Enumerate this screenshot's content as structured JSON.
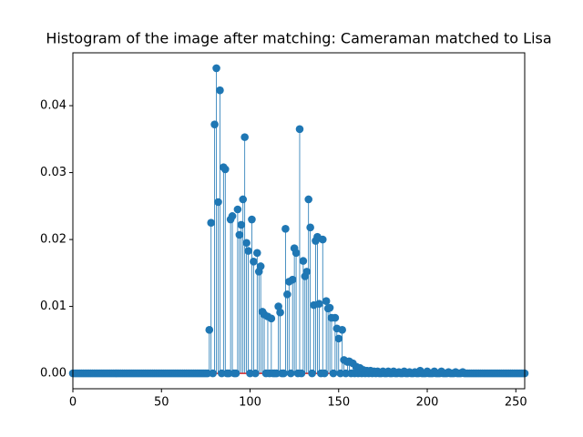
{
  "chart_data": {
    "type": "stem",
    "title": "Histogram of the image after matching: Cameraman matched to Lisa",
    "color": "#1f77b4",
    "baseline_color": "#d62728",
    "x": [
      0,
      1,
      2,
      3,
      4,
      5,
      6,
      7,
      8,
      9,
      10,
      11,
      12,
      13,
      14,
      15,
      16,
      17,
      18,
      19,
      20,
      21,
      22,
      23,
      24,
      25,
      26,
      27,
      28,
      29,
      30,
      31,
      32,
      33,
      34,
      35,
      36,
      37,
      38,
      39,
      40,
      41,
      42,
      43,
      44,
      45,
      46,
      47,
      48,
      49,
      50,
      51,
      52,
      53,
      54,
      55,
      56,
      57,
      58,
      59,
      60,
      61,
      62,
      63,
      64,
      65,
      66,
      67,
      68,
      69,
      70,
      71,
      72,
      73,
      74,
      75,
      76,
      77,
      78,
      79,
      80,
      81,
      82,
      83,
      84,
      85,
      86,
      87,
      88,
      89,
      90,
      91,
      92,
      93,
      94,
      95,
      96,
      97,
      98,
      99,
      100,
      101,
      102,
      103,
      104,
      105,
      106,
      107,
      108,
      109,
      110,
      111,
      112,
      113,
      114,
      115,
      116,
      117,
      118,
      119,
      120,
      121,
      122,
      123,
      124,
      125,
      126,
      127,
      128,
      129,
      130,
      131,
      132,
      133,
      134,
      135,
      136,
      137,
      138,
      139,
      140,
      141,
      142,
      143,
      144,
      145,
      146,
      147,
      148,
      149,
      150,
      151,
      152,
      153,
      154,
      155,
      156,
      157,
      158,
      159,
      160,
      161,
      162,
      163,
      164,
      165,
      166,
      167,
      168,
      169,
      170,
      171,
      172,
      173,
      174,
      175,
      176,
      177,
      178,
      179,
      180,
      181,
      182,
      183,
      184,
      185,
      186,
      187,
      188,
      189,
      190,
      191,
      192,
      193,
      194,
      195,
      196,
      197,
      198,
      199,
      200,
      201,
      202,
      203,
      204,
      205,
      206,
      207,
      208,
      209,
      210,
      211,
      212,
      213,
      214,
      215,
      216,
      217,
      218,
      219,
      220,
      221,
      222,
      223,
      224,
      225,
      226,
      227,
      228,
      229,
      230,
      231,
      232,
      233,
      234,
      235,
      236,
      237,
      238,
      239,
      240,
      241,
      242,
      243,
      244,
      245,
      246,
      247,
      248,
      249,
      250,
      251,
      252,
      253,
      254,
      255
    ],
    "values": [
      0,
      0,
      0,
      0,
      0,
      0,
      0,
      0,
      0,
      0,
      0,
      0,
      0,
      0,
      0,
      0,
      0,
      0,
      0,
      0,
      0,
      0,
      0,
      0,
      0,
      0,
      0,
      0,
      0,
      0,
      0,
      0,
      0,
      0,
      0,
      0,
      0,
      0,
      0,
      0,
      0,
      0,
      0,
      0,
      0,
      0,
      0,
      0,
      0,
      0,
      0,
      0,
      0,
      0,
      0,
      0,
      0,
      0,
      0,
      0,
      0,
      0,
      0,
      0,
      0,
      0,
      0,
      0,
      0,
      0,
      0,
      0,
      0,
      0,
      0,
      0,
      0,
      0.0065,
      0.0225,
      0,
      0.0372,
      0.0456,
      0.0256,
      0.0423,
      0,
      0.0308,
      0.0305,
      0,
      0,
      0.023,
      0.0235,
      0,
      0,
      0.0245,
      0.0207,
      0.0222,
      0.026,
      0.0353,
      0.0195,
      0.0183,
      0,
      0.023,
      0.0167,
      0,
      0.018,
      0.0152,
      0.016,
      0.0092,
      0.0088,
      0,
      0.0085,
      0,
      0.0082,
      0,
      0,
      0,
      0.01,
      0.0091,
      0,
      0,
      0.0216,
      0.0118,
      0.0137,
      0,
      0.014,
      0.0187,
      0.018,
      0,
      0.0365,
      0,
      0.0168,
      0.0145,
      0.0152,
      0.026,
      0.0218,
      0,
      0.0102,
      0.0198,
      0.0204,
      0.0104,
      0,
      0.02,
      0,
      0.0108,
      0.0097,
      0.0098,
      0.0083,
      0,
      0.0083,
      0.0067,
      0.0052,
      0,
      0.0065,
      0.002,
      0,
      0.0017,
      0.0018,
      0,
      0.0015,
      0,
      0.001,
      0,
      0.0008,
      0,
      0.0005,
      0,
      0.0004,
      0,
      0.0004,
      0,
      0.0003,
      0,
      0.0003,
      0,
      0,
      0.0003,
      0,
      0,
      0.0003,
      0,
      0,
      0.0003,
      0,
      0,
      0.0002,
      0,
      0,
      0.0003,
      0,
      0,
      0.0002,
      0,
      0,
      0.0002,
      0,
      0,
      0.0004,
      0,
      0,
      0,
      0.0003,
      0,
      0,
      0,
      0.0003,
      0,
      0,
      0,
      0.0003,
      0,
      0,
      0,
      0.0002,
      0,
      0,
      0,
      0.0002,
      0,
      0,
      0,
      0.0002,
      0,
      0,
      0,
      0,
      0,
      0,
      0,
      0,
      0,
      0,
      0,
      0,
      0,
      0,
      0,
      0,
      0,
      0,
      0,
      0,
      0,
      0,
      0,
      0,
      0,
      0,
      0,
      0,
      0,
      0,
      0,
      0,
      0,
      0,
      0
    ],
    "xlim": [
      0,
      255
    ],
    "xticks": [
      0,
      50,
      100,
      150,
      200,
      250
    ],
    "ylim": [
      -0.0023,
      0.0479
    ],
    "yticks": [
      {
        "value": 0,
        "label": "0.00"
      },
      {
        "value": 0.01,
        "label": "0.01"
      },
      {
        "value": 0.02,
        "label": "0.02"
      },
      {
        "value": 0.03,
        "label": "0.03"
      },
      {
        "value": 0.04,
        "label": "0.04"
      }
    ]
  }
}
